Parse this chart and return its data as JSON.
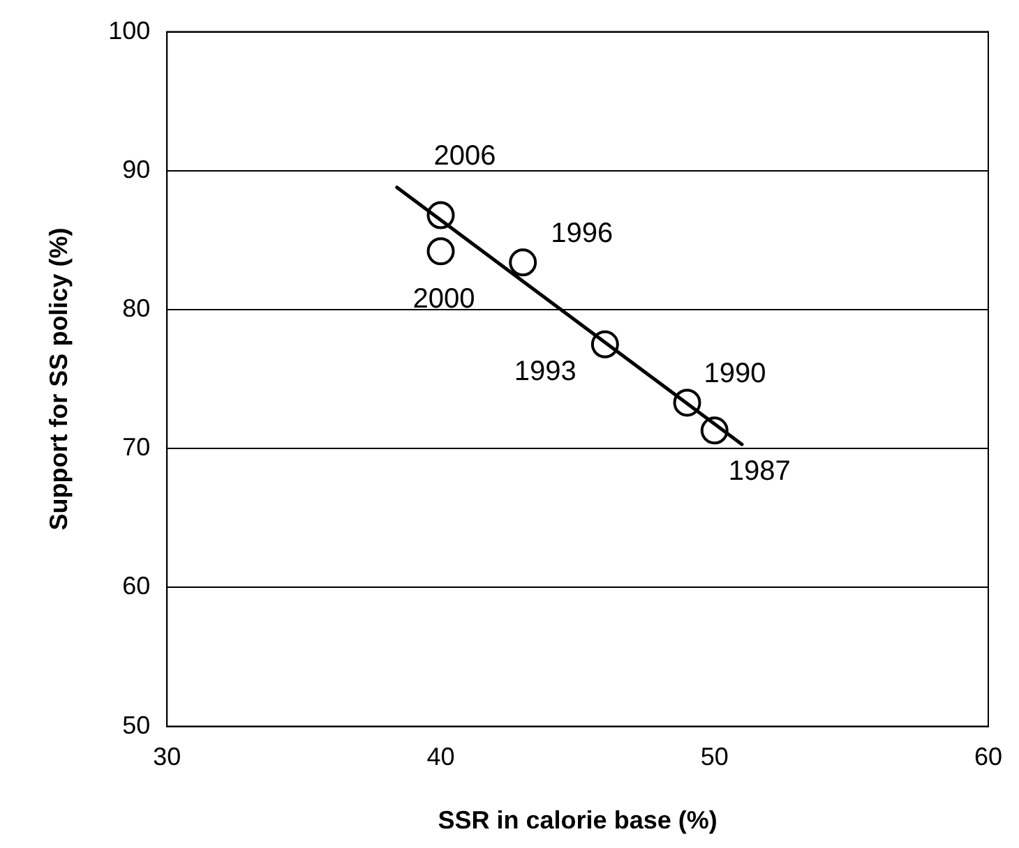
{
  "chart_data": {
    "type": "scatter",
    "xlabel": "SSR in calorie base (%)",
    "ylabel": "Support for SS policy (%)",
    "x": [
      50,
      49,
      46,
      43,
      40,
      40
    ],
    "marker": "circle",
    "series": [
      {
        "color": "#000000",
        "values": [
          71.3,
          73.3,
          77.5,
          83.4,
          84.2,
          86.8
        ]
      },
      {
        "type": "line",
        "color": "#000000",
        "x": [
          38.4,
          51.0
        ],
        "values": [
          88.8,
          70.3
        ],
        "marker": "none",
        "line_style": "solid"
      }
    ],
    "annotations": [
      {
        "text": "1987",
        "x": 50,
        "y": 71.3
      },
      {
        "text": "1990",
        "x": 49,
        "y": 73.3
      },
      {
        "text": "1993",
        "x": 46,
        "y": 77.5
      },
      {
        "text": "1996",
        "x": 43,
        "y": 83.4
      },
      {
        "text": "2000",
        "x": 40,
        "y": 84.2
      },
      {
        "text": "2006",
        "x": 40,
        "y": 86.8
      }
    ],
    "xlim": [
      30,
      60
    ],
    "xticks": [
      30,
      40,
      50,
      60
    ],
    "ylim": [
      50,
      100
    ],
    "yticks": [
      50,
      60,
      70,
      80,
      90,
      100
    ],
    "grid": "y",
    "legend": false
  }
}
